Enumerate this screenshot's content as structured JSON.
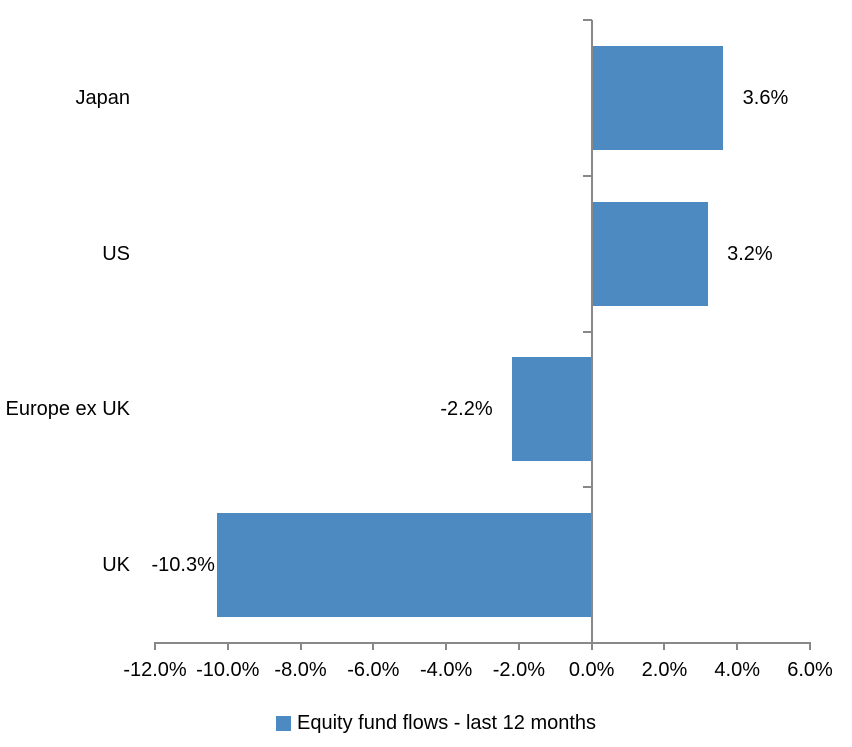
{
  "chart_data": {
    "type": "bar",
    "orientation": "horizontal",
    "title": "",
    "categories": [
      "Japan",
      "US",
      "Europe ex UK",
      "UK"
    ],
    "series": [
      {
        "name": "Equity fund flows - last 12 months",
        "values": [
          3.6,
          3.2,
          -2.2,
          -10.3
        ],
        "value_labels": [
          "3.6%",
          "3.2%",
          "-2.2%",
          "-10.3%"
        ],
        "color": "#4E8AC2"
      }
    ],
    "xlabel": "",
    "ylabel": "",
    "xlim": [
      -12,
      6
    ],
    "x_tick_values": [
      -12,
      -10,
      -8,
      -6,
      -4,
      -2,
      0,
      2,
      4,
      6
    ],
    "x_tick_labels": [
      "-12.0%",
      "-10.0%",
      "-8.0%",
      "-6.0%",
      "-4.0%",
      "-2.0%",
      "0.0%",
      "2.0%",
      "4.0%",
      "6.0%"
    ],
    "value_label_gaps": [
      20,
      19,
      19,
      2
    ],
    "grid": false,
    "legend_position": "bottom",
    "axis_color": "#888888",
    "text_color": "#000000",
    "background": "#FFFFFF"
  }
}
